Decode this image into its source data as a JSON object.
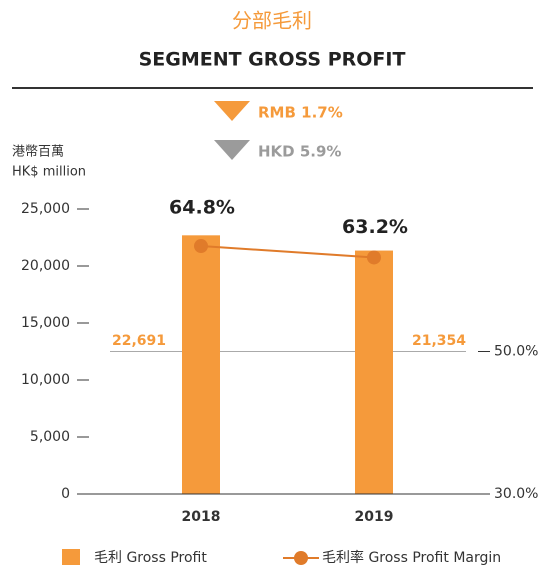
{
  "chart_data": {
    "type": "bar",
    "title": "分部毛利",
    "subtitle": "SEGMENT GROSS PROFIT",
    "annotations": [
      {
        "text": "RMB 1.7%",
        "color": "#f59a3b"
      },
      {
        "text": "HKD 5.9%",
        "color": "#9b9b9b"
      }
    ],
    "ylabel": [
      "港幣百萬",
      "HK$ million"
    ],
    "categories": [
      "2018",
      "2019"
    ],
    "series": [
      {
        "name": "毛利 Gross Profit",
        "type": "bar",
        "color": "#f59a3b",
        "values": [
          22691,
          21354
        ],
        "value_labels": [
          "22,691",
          "21,354"
        ]
      },
      {
        "name": "毛利率 Gross Profit Margin",
        "type": "line",
        "axis": "y2",
        "color": "#e07b2a",
        "values": [
          64.8,
          63.2
        ],
        "value_labels": [
          "64.8%",
          "63.2%"
        ]
      }
    ],
    "ylim": [
      0,
      25000
    ],
    "yticks": [
      0,
      {
        "value": 5000,
        "label": "5,000"
      },
      {
        "value": 10000,
        "label": "10,000"
      },
      {
        "value": 15000,
        "label": "15,000"
      },
      {
        "value": 20000,
        "label": "20,000"
      },
      {
        "value": 25000,
        "label": "25,000"
      }
    ],
    "y2lim": [
      30,
      70
    ],
    "y2ticks": [
      {
        "value": 30,
        "label": "30.0%"
      },
      {
        "value": 50,
        "label": "50.0%"
      }
    ]
  }
}
